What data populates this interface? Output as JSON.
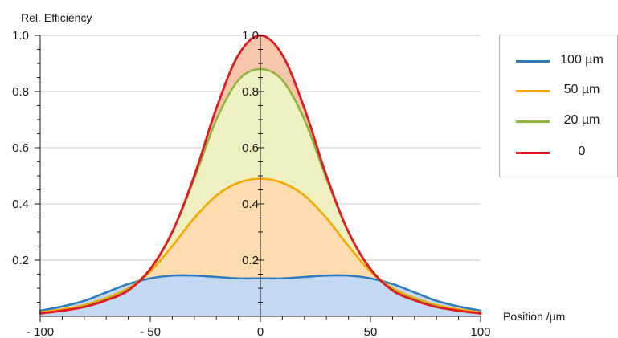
{
  "chart_data": {
    "type": "area",
    "ylabel": "Rel. Efficiency",
    "xlabel": "Position /µm",
    "xlim": [
      -100,
      100
    ],
    "ylim": [
      0,
      1.0
    ],
    "x_ticks": [
      -100,
      -50,
      0,
      50,
      100
    ],
    "x_tick_labels": [
      "- 100",
      "- 50",
      "0",
      "50",
      "100"
    ],
    "y_ticks": [
      0.2,
      0.4,
      0.6,
      0.8,
      1.0
    ],
    "y_tick_labels": [
      "0.2",
      "0.4",
      "0.6",
      "0.8",
      "1.0"
    ],
    "center_tick_labels": [
      "0.2",
      "0.4",
      "0.6",
      "0.8",
      "1.0"
    ],
    "grid": true,
    "legend_position": "top-right",
    "x": [
      -100,
      -90,
      -80,
      -70,
      -60,
      -50,
      -40,
      -30,
      -20,
      -10,
      0,
      10,
      20,
      30,
      40,
      50,
      60,
      70,
      80,
      90,
      100
    ],
    "series": [
      {
        "name": "100 µm",
        "color": "#2f7bbf",
        "fill": "#c3d9f1",
        "values": [
          0.02,
          0.035,
          0.055,
          0.085,
          0.115,
          0.135,
          0.145,
          0.145,
          0.14,
          0.135,
          0.135,
          0.135,
          0.14,
          0.145,
          0.145,
          0.135,
          0.115,
          0.085,
          0.055,
          0.035,
          0.02
        ]
      },
      {
        "name": "50 µm",
        "color": "#f5a800",
        "fill": "#fddcb0",
        "values": [
          0.015,
          0.025,
          0.04,
          0.065,
          0.1,
          0.16,
          0.25,
          0.35,
          0.43,
          0.475,
          0.49,
          0.475,
          0.43,
          0.35,
          0.25,
          0.16,
          0.1,
          0.065,
          0.04,
          0.025,
          0.015
        ]
      },
      {
        "name": "20 µm",
        "color": "#8db73a",
        "fill": "#eef0c2",
        "values": [
          0.012,
          0.02,
          0.035,
          0.06,
          0.095,
          0.17,
          0.3,
          0.49,
          0.7,
          0.84,
          0.88,
          0.84,
          0.7,
          0.49,
          0.3,
          0.17,
          0.095,
          0.06,
          0.035,
          0.02,
          0.012
        ]
      },
      {
        "name": "0",
        "color": "#e21a22",
        "fill": "#f7c6ad",
        "values": [
          0.01,
          0.02,
          0.033,
          0.057,
          0.092,
          0.168,
          0.3,
          0.5,
          0.74,
          0.93,
          1.0,
          0.93,
          0.74,
          0.5,
          0.3,
          0.168,
          0.092,
          0.057,
          0.033,
          0.02,
          0.01
        ]
      }
    ]
  }
}
